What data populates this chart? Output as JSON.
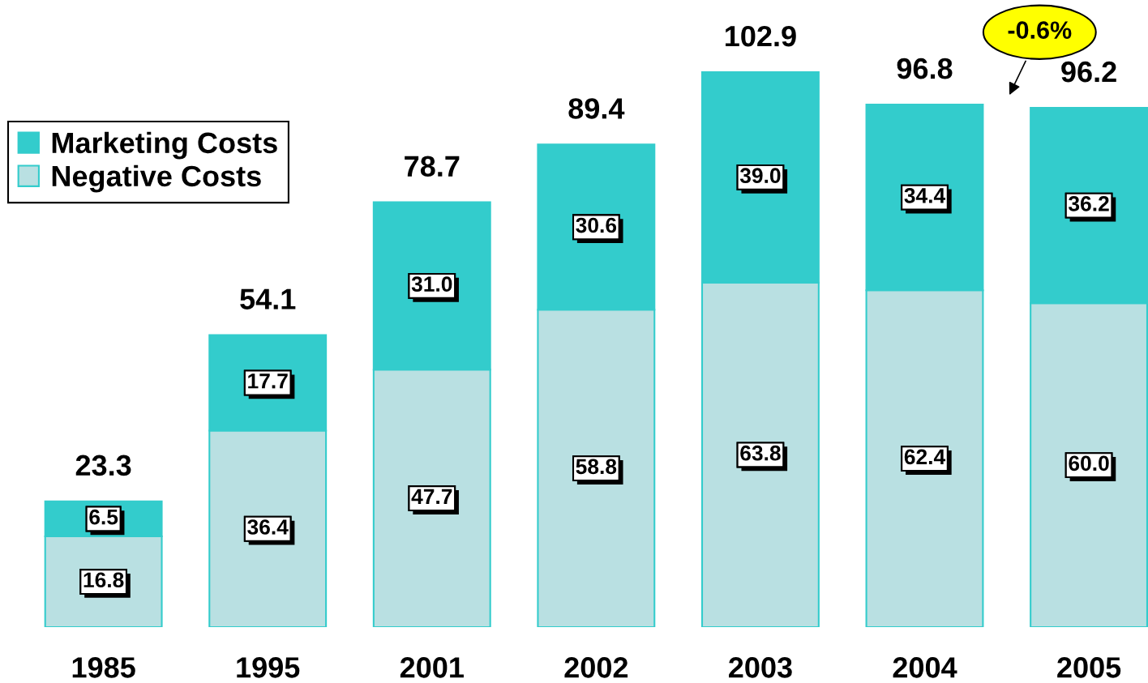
{
  "chart_data": {
    "type": "bar",
    "stacked": true,
    "categories": [
      "1985",
      "1995",
      "2001",
      "2002",
      "2003",
      "2004",
      "2005"
    ],
    "series": [
      {
        "name": "Negative Costs",
        "color": "#b9e0e2",
        "values": [
          16.8,
          36.4,
          47.7,
          58.8,
          63.8,
          62.4,
          60.0
        ],
        "value_labels": [
          "16.8",
          "36.4",
          "47.7",
          "58.8",
          "63.8",
          "62.4",
          "60.0"
        ]
      },
      {
        "name": "Marketing Costs",
        "color": "#33cccc",
        "values": [
          6.5,
          17.7,
          31.0,
          30.6,
          39.0,
          34.4,
          36.2
        ],
        "value_labels": [
          "6.5",
          "17.7",
          "31.0",
          "30.6",
          "39.0",
          "34.4",
          "36.2"
        ]
      }
    ],
    "totals": [
      "23.3",
      "54.1",
      "78.7",
      "89.4",
      "102.9",
      "96.8",
      "96.2"
    ],
    "annotations": [
      "-0.6%"
    ],
    "legend": "top left",
    "grid": false,
    "tick_labels": "x"
  }
}
